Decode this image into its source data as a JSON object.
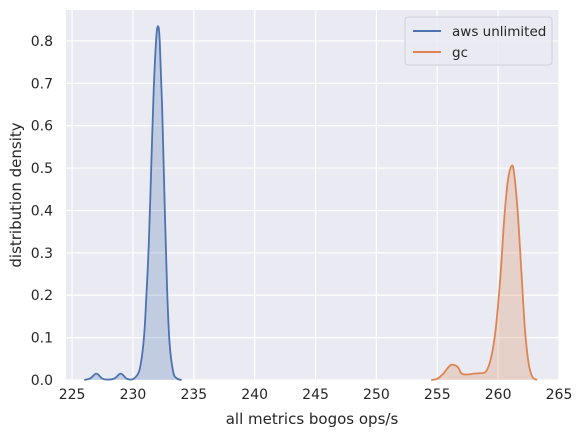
{
  "chart_data": {
    "type": "area",
    "title": "",
    "xlabel": "all metrics bogos ops/s",
    "ylabel": "distribution density",
    "xlim": [
      224.5,
      265
    ],
    "ylim": [
      0,
      0.873
    ],
    "xticks": [
      225,
      230,
      235,
      240,
      245,
      250,
      255,
      260,
      265
    ],
    "yticks": [
      0.0,
      0.1,
      0.2,
      0.3,
      0.4,
      0.5,
      0.6,
      0.7,
      0.8
    ],
    "grid": true,
    "legend_position": "top-right",
    "series": [
      {
        "name": "aws unlimited",
        "color": "#4c72b0",
        "x": [
          226.0,
          226.5,
          227.0,
          227.5,
          228.0,
          228.5,
          229.0,
          229.5,
          230.0,
          230.5,
          230.8,
          231.0,
          231.3,
          231.5,
          231.7,
          231.9,
          232.05,
          232.2,
          232.4,
          232.6,
          232.8,
          233.0,
          233.3,
          233.6,
          234.0
        ],
        "y": [
          0.0,
          0.004,
          0.015,
          0.003,
          0.001,
          0.004,
          0.015,
          0.003,
          0.002,
          0.02,
          0.07,
          0.14,
          0.32,
          0.5,
          0.68,
          0.8,
          0.835,
          0.8,
          0.64,
          0.42,
          0.22,
          0.09,
          0.02,
          0.004,
          0.0
        ]
      },
      {
        "name": "gc",
        "color": "#dd8452",
        "x": [
          254.5,
          255.0,
          255.5,
          256.0,
          256.3,
          256.7,
          257.0,
          257.5,
          258.0,
          258.5,
          259.0,
          259.4,
          259.8,
          260.2,
          260.5,
          260.8,
          261.1,
          261.3,
          261.6,
          261.9,
          262.2,
          262.5,
          262.8,
          263.2
        ],
        "y": [
          0.0,
          0.003,
          0.015,
          0.033,
          0.036,
          0.03,
          0.015,
          0.013,
          0.015,
          0.016,
          0.02,
          0.05,
          0.12,
          0.25,
          0.38,
          0.47,
          0.505,
          0.49,
          0.4,
          0.26,
          0.12,
          0.04,
          0.008,
          0.0
        ]
      }
    ]
  }
}
